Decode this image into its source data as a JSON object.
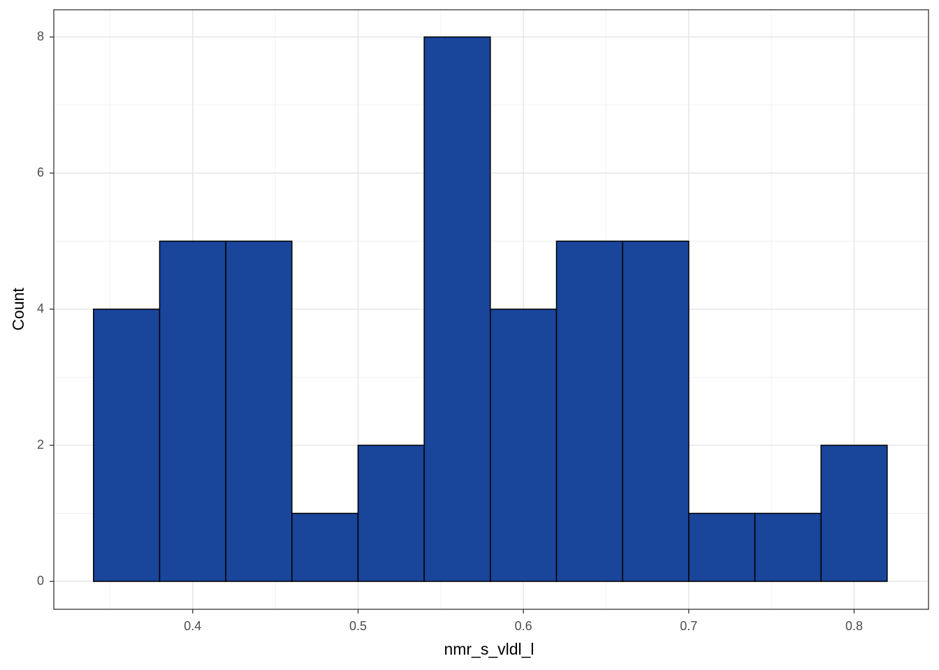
{
  "chart_data": {
    "type": "histogram",
    "x_label": "nmr_s_vldl_l",
    "y_label": "Count",
    "bins": [
      0.34,
      0.38,
      0.42,
      0.46,
      0.5,
      0.54,
      0.58,
      0.62,
      0.66,
      0.7,
      0.74,
      0.78,
      0.82
    ],
    "values": [
      4,
      5,
      5,
      1,
      2,
      8,
      4,
      5,
      5,
      1,
      1,
      2
    ],
    "color": "#19459a",
    "edge_color": "#000000",
    "xlim": [
      0.316,
      0.845
    ],
    "xticks": [
      0.4,
      0.5,
      0.6,
      0.7,
      0.8
    ],
    "ylim": [
      -0.41,
      8.4
    ],
    "yticks": [
      0,
      2,
      4,
      6,
      8
    ],
    "grid": true,
    "minor_grid": true
  }
}
